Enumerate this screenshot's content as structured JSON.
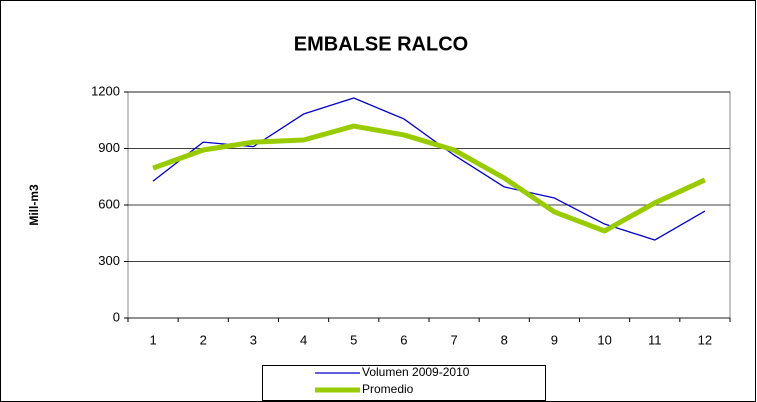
{
  "chart_data": {
    "type": "line",
    "title": "EMBALSE RALCO",
    "ylabel": "Mill-m3",
    "categories": [
      "1",
      "2",
      "3",
      "4",
      "5",
      "6",
      "7",
      "8",
      "9",
      "10",
      "11",
      "12"
    ],
    "series": [
      {
        "name": "Volumen  2009-2010",
        "color": "#0000cc",
        "width": 1.3,
        "values": [
          727,
          934,
          910,
          1083,
          1168,
          1057,
          865,
          696,
          637,
          499,
          414,
          568
        ]
      },
      {
        "name": "Promedio",
        "color": "#99cc00",
        "width": 5,
        "values": [
          796,
          892,
          934,
          945,
          1019,
          972,
          892,
          743,
          563,
          462,
          611,
          733
        ]
      }
    ],
    "ylim": [
      0,
      1200
    ],
    "yticks": [
      0,
      300,
      600,
      900,
      1200
    ],
    "grid": true
  }
}
